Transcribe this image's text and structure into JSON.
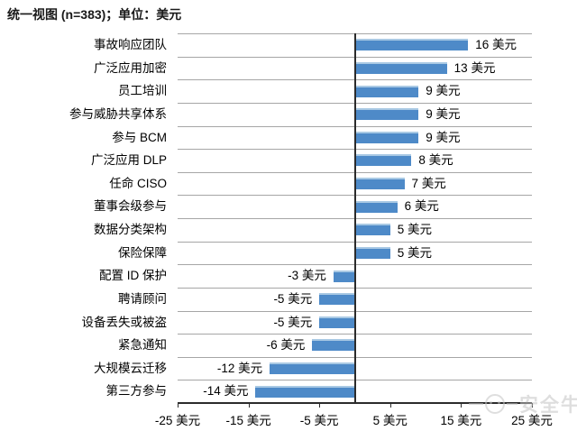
{
  "title": "统一视图 (n=383)；单位：美元",
  "watermark": {
    "text": "安全牛"
  },
  "chart_data": {
    "type": "bar",
    "orientation": "horizontal",
    "title": "统一视图 (n=383)；单位：美元",
    "unit": "美元",
    "sample_note": "n=383",
    "categories": [
      "事故响应团队",
      "广泛应用加密",
      "员工培训",
      "参与威胁共享体系",
      "参与 BCM",
      "广泛应用 DLP",
      "任命 CISO",
      "董事会级参与",
      "数据分类架构",
      "保险保障",
      "配置 ID 保护",
      "聘请顾问",
      "设备丢失或被盗",
      "紧急通知",
      "大规模云迁移",
      "第三方参与"
    ],
    "values": [
      16,
      13,
      9,
      9,
      9,
      8,
      7,
      6,
      5,
      5,
      -3,
      -5,
      -5,
      -6,
      -12,
      -14
    ],
    "value_labels": [
      "16 美元",
      "13 美元",
      "9 美元",
      "9 美元",
      "9 美元",
      "8 美元",
      "7 美元",
      "6 美元",
      "5 美元",
      "5 美元",
      "-3 美元",
      "-5 美元",
      "-5 美元",
      "-6 美元",
      "-12 美元",
      "-14 美元"
    ],
    "x_ticks": [
      -25,
      -15,
      -5,
      5,
      15,
      25
    ],
    "x_tick_labels": [
      "-25 美元",
      "-15 美元",
      "-5 美元",
      "5 美元",
      "15 美元",
      "25 美元"
    ],
    "xlim": [
      -25,
      25
    ],
    "x_major_unit": 10,
    "grid": "on",
    "legend": "none",
    "bar_color": "#4e8ac8",
    "gridline_color": "#a6a6a6",
    "axis_color": "#2b2b2b"
  }
}
